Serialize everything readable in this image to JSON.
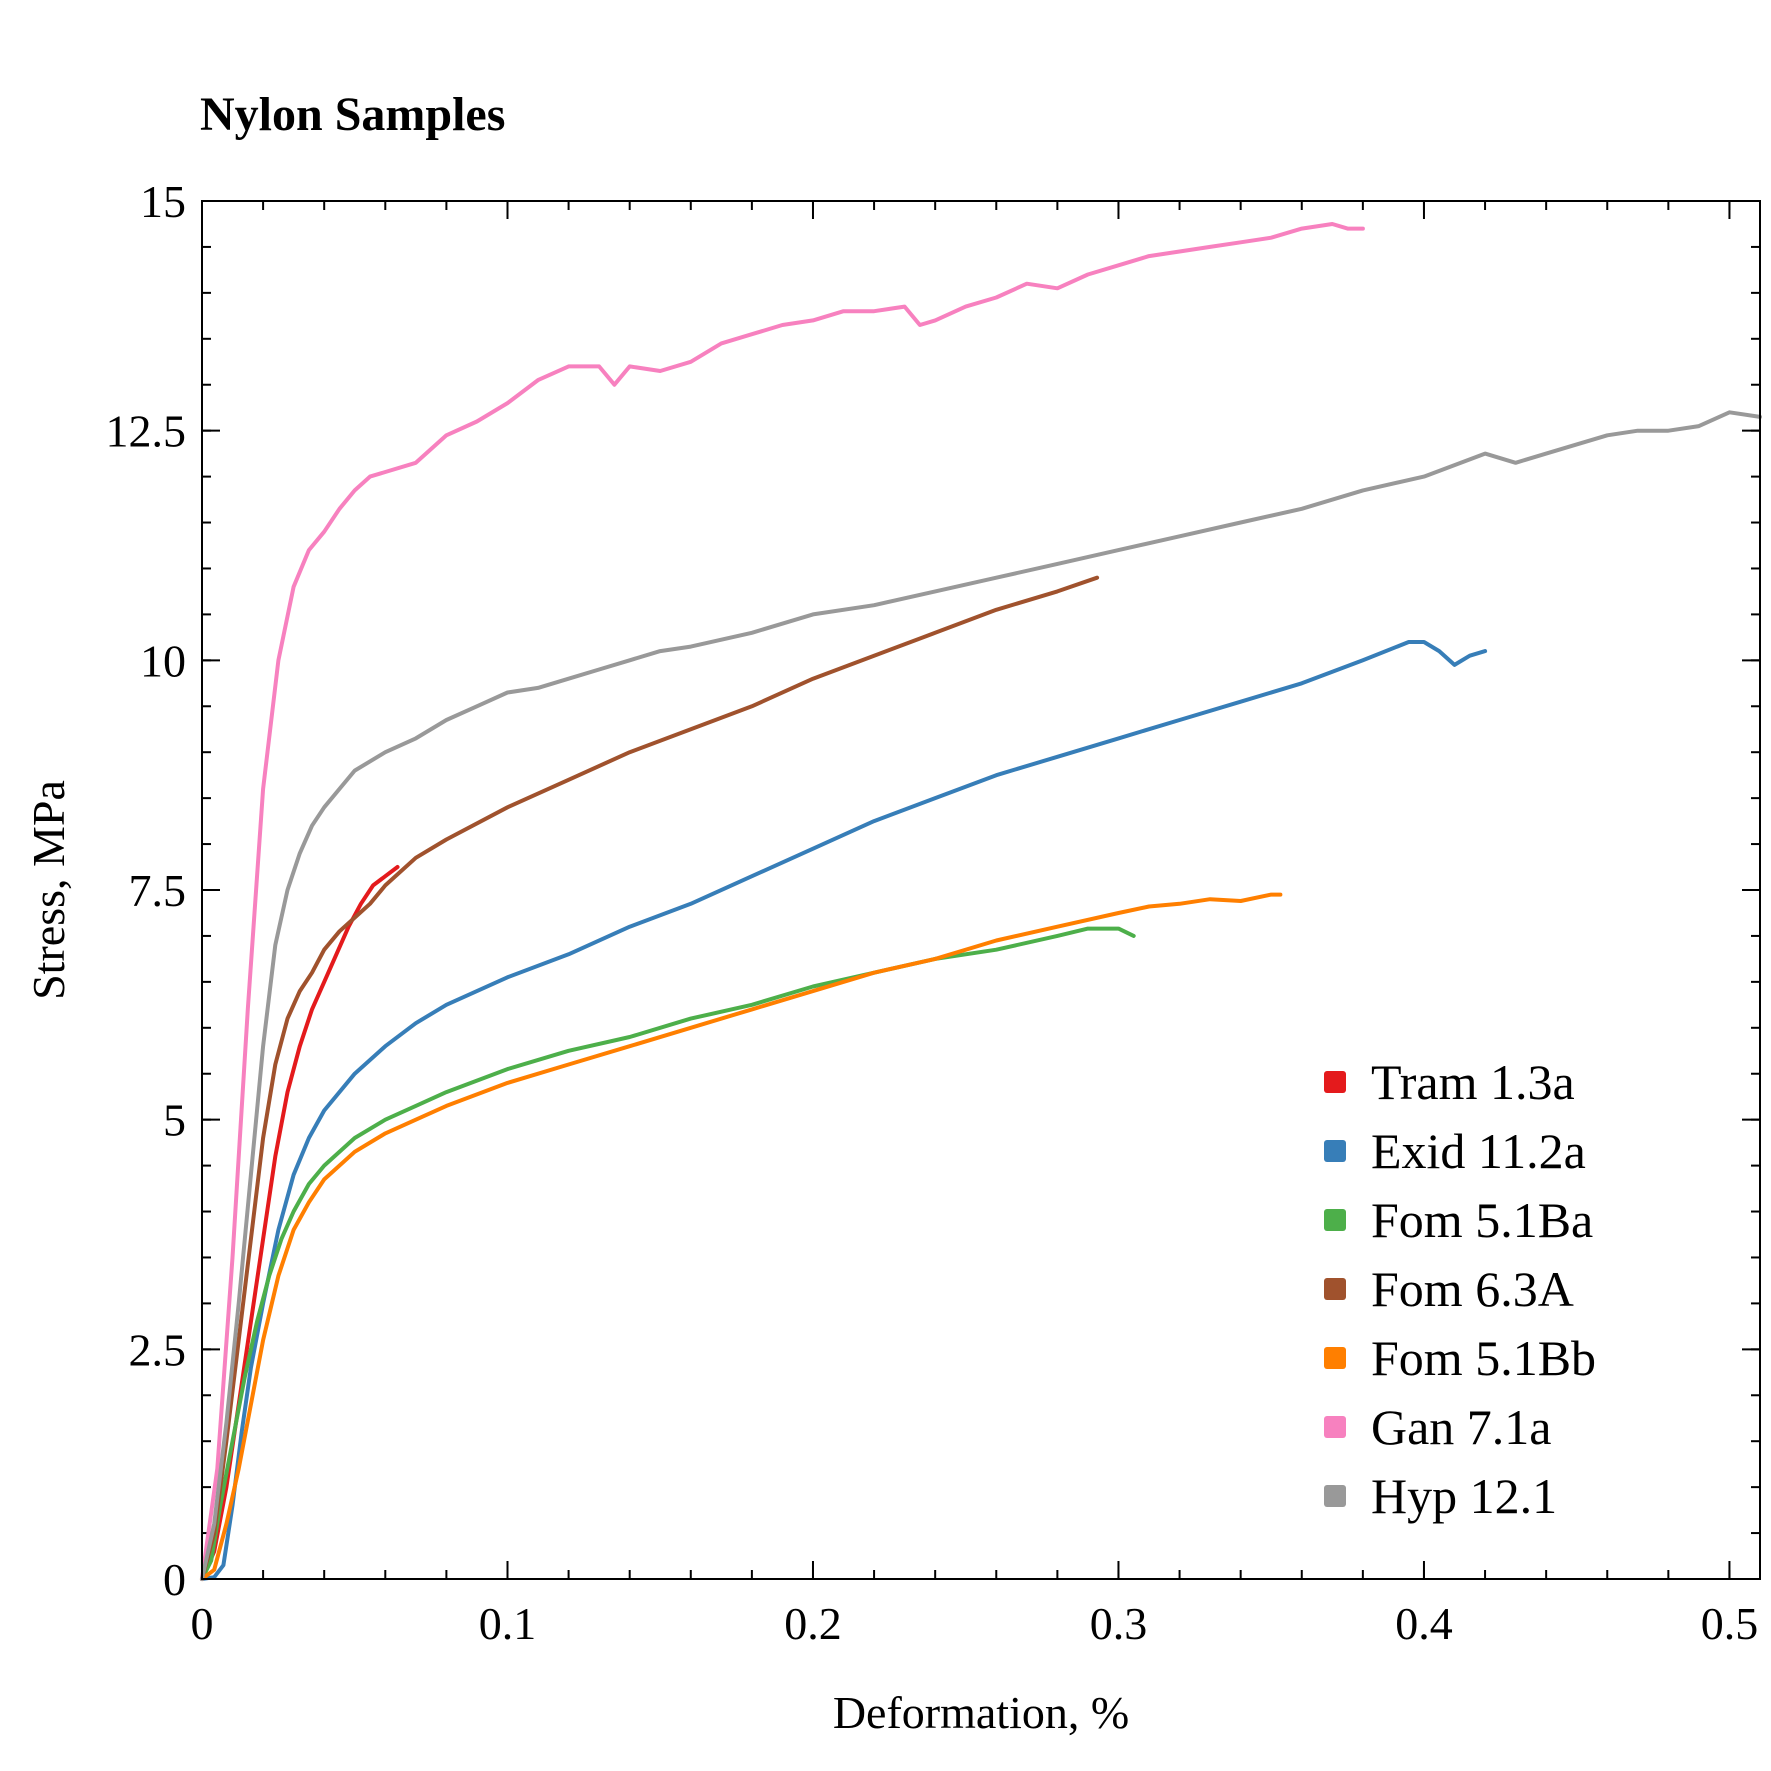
{
  "chart_data": {
    "type": "line",
    "title": "Nylon Samples",
    "xlabel": "Deformation, %",
    "ylabel": "Stress, MPa",
    "xlim": [
      0,
      0.51
    ],
    "ylim": [
      0,
      15
    ],
    "x_ticks": [
      0,
      0.1,
      0.2,
      0.3,
      0.4,
      0.5
    ],
    "x_tick_labels": [
      "0",
      "0.1",
      "0.2",
      "0.3",
      "0.4",
      "0.5"
    ],
    "y_ticks": [
      0,
      2.5,
      5,
      7.5,
      10,
      12.5,
      15
    ],
    "y_tick_labels": [
      "0",
      "2.5",
      "5",
      "7.5",
      "10",
      "12.5",
      "15"
    ],
    "x_minor_step": 0.02,
    "y_minor_step": 0.5,
    "grid": false,
    "legend_position": "bottom-right",
    "series": [
      {
        "name": "Tram 1.3a",
        "color": "#e41a1c",
        "points": [
          [
            0,
            0
          ],
          [
            0.004,
            0.3
          ],
          [
            0.008,
            1.0
          ],
          [
            0.012,
            1.9
          ],
          [
            0.016,
            2.8
          ],
          [
            0.02,
            3.7
          ],
          [
            0.024,
            4.6
          ],
          [
            0.028,
            5.3
          ],
          [
            0.032,
            5.8
          ],
          [
            0.036,
            6.2
          ],
          [
            0.04,
            6.5
          ],
          [
            0.044,
            6.8
          ],
          [
            0.048,
            7.1
          ],
          [
            0.052,
            7.35
          ],
          [
            0.056,
            7.55
          ],
          [
            0.06,
            7.65
          ],
          [
            0.064,
            7.75
          ]
        ]
      },
      {
        "name": "Exid 11.2a",
        "color": "#377eb8",
        "points": [
          [
            0,
            0
          ],
          [
            0.004,
            0.02
          ],
          [
            0.007,
            0.15
          ],
          [
            0.01,
            0.8
          ],
          [
            0.013,
            1.6
          ],
          [
            0.016,
            2.3
          ],
          [
            0.02,
            3.0
          ],
          [
            0.025,
            3.8
          ],
          [
            0.03,
            4.4
          ],
          [
            0.035,
            4.8
          ],
          [
            0.04,
            5.1
          ],
          [
            0.05,
            5.5
          ],
          [
            0.06,
            5.8
          ],
          [
            0.07,
            6.05
          ],
          [
            0.08,
            6.25
          ],
          [
            0.1,
            6.55
          ],
          [
            0.12,
            6.8
          ],
          [
            0.14,
            7.1
          ],
          [
            0.16,
            7.35
          ],
          [
            0.18,
            7.65
          ],
          [
            0.2,
            7.95
          ],
          [
            0.22,
            8.25
          ],
          [
            0.24,
            8.5
          ],
          [
            0.26,
            8.75
          ],
          [
            0.28,
            8.95
          ],
          [
            0.3,
            9.15
          ],
          [
            0.32,
            9.35
          ],
          [
            0.34,
            9.55
          ],
          [
            0.36,
            9.75
          ],
          [
            0.38,
            10.0
          ],
          [
            0.395,
            10.2
          ],
          [
            0.4,
            10.2
          ],
          [
            0.405,
            10.1
          ],
          [
            0.41,
            9.95
          ],
          [
            0.415,
            10.05
          ],
          [
            0.42,
            10.1
          ]
        ]
      },
      {
        "name": "Fom 5.1Ba",
        "color": "#4daf4a",
        "points": [
          [
            0,
            0
          ],
          [
            0.003,
            0.2
          ],
          [
            0.006,
            0.8
          ],
          [
            0.01,
            1.5
          ],
          [
            0.014,
            2.2
          ],
          [
            0.018,
            2.8
          ],
          [
            0.022,
            3.3
          ],
          [
            0.026,
            3.7
          ],
          [
            0.03,
            4.0
          ],
          [
            0.035,
            4.3
          ],
          [
            0.04,
            4.5
          ],
          [
            0.05,
            4.8
          ],
          [
            0.06,
            5.0
          ],
          [
            0.07,
            5.15
          ],
          [
            0.08,
            5.3
          ],
          [
            0.1,
            5.55
          ],
          [
            0.12,
            5.75
          ],
          [
            0.14,
            5.9
          ],
          [
            0.16,
            6.1
          ],
          [
            0.18,
            6.25
          ],
          [
            0.2,
            6.45
          ],
          [
            0.22,
            6.6
          ],
          [
            0.24,
            6.75
          ],
          [
            0.26,
            6.85
          ],
          [
            0.28,
            7.0
          ],
          [
            0.29,
            7.08
          ],
          [
            0.3,
            7.08
          ],
          [
            0.305,
            7.0
          ]
        ]
      },
      {
        "name": "Fom 6.3A",
        "color": "#a0522d",
        "points": [
          [
            0,
            0
          ],
          [
            0.004,
            0.5
          ],
          [
            0.008,
            1.5
          ],
          [
            0.012,
            2.6
          ],
          [
            0.016,
            3.7
          ],
          [
            0.02,
            4.8
          ],
          [
            0.024,
            5.6
          ],
          [
            0.028,
            6.1
          ],
          [
            0.032,
            6.4
          ],
          [
            0.036,
            6.6
          ],
          [
            0.04,
            6.85
          ],
          [
            0.045,
            7.05
          ],
          [
            0.05,
            7.2
          ],
          [
            0.055,
            7.35
          ],
          [
            0.06,
            7.55
          ],
          [
            0.07,
            7.85
          ],
          [
            0.08,
            8.05
          ],
          [
            0.1,
            8.4
          ],
          [
            0.12,
            8.7
          ],
          [
            0.14,
            9.0
          ],
          [
            0.16,
            9.25
          ],
          [
            0.18,
            9.5
          ],
          [
            0.2,
            9.8
          ],
          [
            0.22,
            10.05
          ],
          [
            0.24,
            10.3
          ],
          [
            0.26,
            10.55
          ],
          [
            0.28,
            10.75
          ],
          [
            0.293,
            10.9
          ]
        ]
      },
      {
        "name": "Fom 5.1Bb",
        "color": "#ff7f00",
        "points": [
          [
            0,
            0
          ],
          [
            0.004,
            0.1
          ],
          [
            0.008,
            0.6
          ],
          [
            0.012,
            1.2
          ],
          [
            0.016,
            1.9
          ],
          [
            0.02,
            2.6
          ],
          [
            0.025,
            3.3
          ],
          [
            0.03,
            3.8
          ],
          [
            0.035,
            4.1
          ],
          [
            0.04,
            4.35
          ],
          [
            0.05,
            4.65
          ],
          [
            0.06,
            4.85
          ],
          [
            0.07,
            5.0
          ],
          [
            0.08,
            5.15
          ],
          [
            0.1,
            5.4
          ],
          [
            0.12,
            5.6
          ],
          [
            0.14,
            5.8
          ],
          [
            0.16,
            6.0
          ],
          [
            0.18,
            6.2
          ],
          [
            0.2,
            6.4
          ],
          [
            0.22,
            6.6
          ],
          [
            0.24,
            6.75
          ],
          [
            0.26,
            6.95
          ],
          [
            0.28,
            7.1
          ],
          [
            0.3,
            7.25
          ],
          [
            0.31,
            7.32
          ],
          [
            0.32,
            7.35
          ],
          [
            0.33,
            7.4
          ],
          [
            0.34,
            7.38
          ],
          [
            0.35,
            7.45
          ],
          [
            0.353,
            7.45
          ]
        ]
      },
      {
        "name": "Gan 7.1a",
        "color": "#f781bf",
        "points": [
          [
            0,
            0
          ],
          [
            0.005,
            1.2
          ],
          [
            0.01,
            3.5
          ],
          [
            0.015,
            6.2
          ],
          [
            0.02,
            8.6
          ],
          [
            0.025,
            10.0
          ],
          [
            0.03,
            10.8
          ],
          [
            0.035,
            11.2
          ],
          [
            0.04,
            11.4
          ],
          [
            0.045,
            11.65
          ],
          [
            0.05,
            11.85
          ],
          [
            0.055,
            12.0
          ],
          [
            0.06,
            12.05
          ],
          [
            0.07,
            12.15
          ],
          [
            0.08,
            12.45
          ],
          [
            0.09,
            12.6
          ],
          [
            0.1,
            12.8
          ],
          [
            0.11,
            13.05
          ],
          [
            0.12,
            13.2
          ],
          [
            0.13,
            13.2
          ],
          [
            0.135,
            13.0
          ],
          [
            0.14,
            13.2
          ],
          [
            0.15,
            13.15
          ],
          [
            0.16,
            13.25
          ],
          [
            0.17,
            13.45
          ],
          [
            0.18,
            13.55
          ],
          [
            0.19,
            13.65
          ],
          [
            0.2,
            13.7
          ],
          [
            0.21,
            13.8
          ],
          [
            0.22,
            13.8
          ],
          [
            0.23,
            13.85
          ],
          [
            0.235,
            13.65
          ],
          [
            0.24,
            13.7
          ],
          [
            0.25,
            13.85
          ],
          [
            0.26,
            13.95
          ],
          [
            0.27,
            14.1
          ],
          [
            0.28,
            14.05
          ],
          [
            0.29,
            14.2
          ],
          [
            0.3,
            14.3
          ],
          [
            0.31,
            14.4
          ],
          [
            0.32,
            14.45
          ],
          [
            0.33,
            14.5
          ],
          [
            0.34,
            14.55
          ],
          [
            0.35,
            14.6
          ],
          [
            0.36,
            14.7
          ],
          [
            0.37,
            14.75
          ],
          [
            0.375,
            14.7
          ],
          [
            0.38,
            14.7
          ]
        ]
      },
      {
        "name": "Hyp 12.1",
        "color": "#999999",
        "points": [
          [
            0,
            0
          ],
          [
            0.004,
            0.6
          ],
          [
            0.008,
            1.7
          ],
          [
            0.012,
            3.0
          ],
          [
            0.016,
            4.4
          ],
          [
            0.02,
            5.8
          ],
          [
            0.024,
            6.9
          ],
          [
            0.028,
            7.5
          ],
          [
            0.032,
            7.9
          ],
          [
            0.036,
            8.2
          ],
          [
            0.04,
            8.4
          ],
          [
            0.045,
            8.6
          ],
          [
            0.05,
            8.8
          ],
          [
            0.06,
            9.0
          ],
          [
            0.07,
            9.15
          ],
          [
            0.08,
            9.35
          ],
          [
            0.09,
            9.5
          ],
          [
            0.1,
            9.65
          ],
          [
            0.11,
            9.7
          ],
          [
            0.12,
            9.8
          ],
          [
            0.13,
            9.9
          ],
          [
            0.14,
            10.0
          ],
          [
            0.15,
            10.1
          ],
          [
            0.16,
            10.15
          ],
          [
            0.18,
            10.3
          ],
          [
            0.2,
            10.5
          ],
          [
            0.22,
            10.6
          ],
          [
            0.24,
            10.75
          ],
          [
            0.26,
            10.9
          ],
          [
            0.28,
            11.05
          ],
          [
            0.3,
            11.2
          ],
          [
            0.32,
            11.35
          ],
          [
            0.34,
            11.5
          ],
          [
            0.36,
            11.65
          ],
          [
            0.38,
            11.85
          ],
          [
            0.4,
            12.0
          ],
          [
            0.42,
            12.25
          ],
          [
            0.43,
            12.15
          ],
          [
            0.44,
            12.25
          ],
          [
            0.45,
            12.35
          ],
          [
            0.46,
            12.45
          ],
          [
            0.47,
            12.5
          ],
          [
            0.48,
            12.5
          ],
          [
            0.49,
            12.55
          ],
          [
            0.5,
            12.7
          ],
          [
            0.51,
            12.65
          ]
        ]
      }
    ]
  }
}
